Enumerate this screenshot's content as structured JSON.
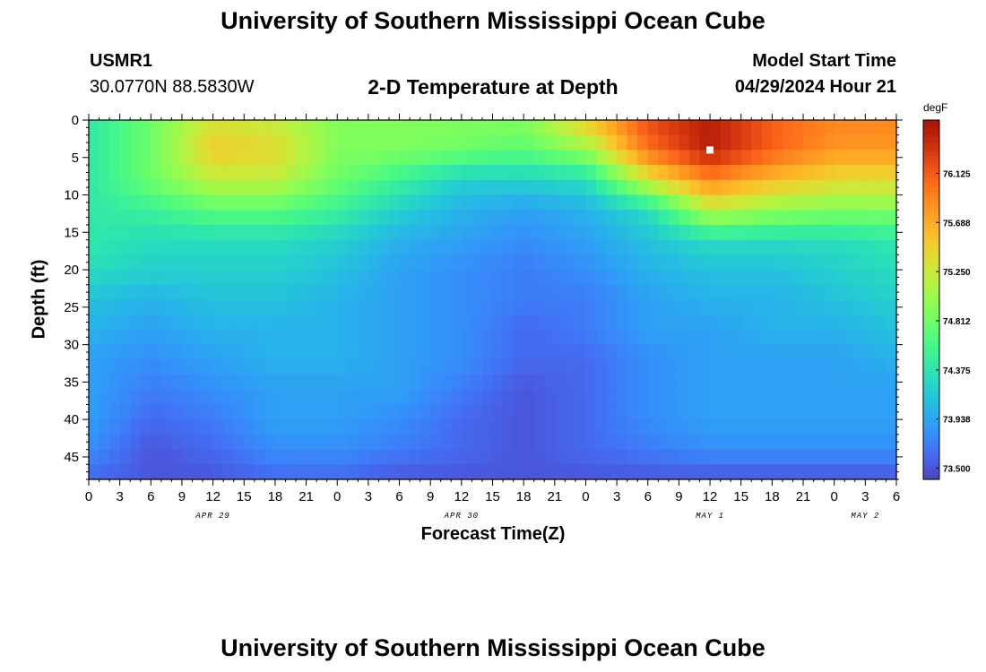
{
  "header": {
    "title": "University of Southern Mississippi Ocean Cube",
    "station_id": "USMR1",
    "station_coords": "30.0770N  88.5830W",
    "plot_title": "2-D Temperature at Depth",
    "model_start_label": "Model Start Time",
    "model_start_value": "04/29/2024 Hour 21"
  },
  "footer": {
    "title": "University of Southern Mississippi Ocean Cube"
  },
  "colors": {
    "colormap": "turbo",
    "marker": "#ffffff"
  },
  "chart_data": {
    "type": "heatmap",
    "title": "2-D Temperature at Depth",
    "xlabel": "Forecast Time(Z)",
    "ylabel": "Depth (ft)",
    "x_unit": "hours since 04/29/2024 00Z",
    "xlim": [
      0,
      78
    ],
    "x_ticks": [
      0,
      3,
      6,
      9,
      12,
      15,
      18,
      21,
      24,
      27,
      30,
      33,
      36,
      39,
      42,
      45,
      48,
      51,
      54,
      57,
      60,
      63,
      66,
      69,
      72,
      75,
      78
    ],
    "x_tick_labels": [
      "0",
      "3",
      "6",
      "9",
      "12",
      "15",
      "18",
      "21",
      "0",
      "3",
      "6",
      "9",
      "12",
      "15",
      "18",
      "21",
      "0",
      "3",
      "6",
      "9",
      "12",
      "15",
      "18",
      "21",
      "0",
      "3",
      "6"
    ],
    "date_labels": [
      {
        "text": "APR 29",
        "x": 12
      },
      {
        "text": "APR 30",
        "x": 36
      },
      {
        "text": "MAY 1",
        "x": 60
      },
      {
        "text": "MAY 2",
        "x": 75
      }
    ],
    "ylim": [
      0,
      48
    ],
    "y_inverted": true,
    "y_ticks": [
      0,
      5,
      10,
      15,
      20,
      25,
      30,
      35,
      40,
      45
    ],
    "colorbar": {
      "unit": "degF",
      "range": [
        73.4,
        76.6
      ],
      "tick_values": [
        73.5,
        73.938,
        74.375,
        74.812,
        75.25,
        75.688,
        76.125
      ],
      "tick_labels": [
        "73.500",
        "73.938",
        "74.375",
        "74.812",
        "75.250",
        "75.688",
        "76.125"
      ]
    },
    "grid": false,
    "marker": {
      "x": 60,
      "y": 4
    },
    "z_grid": {
      "x": [
        0,
        6,
        12,
        18,
        24,
        30,
        36,
        42,
        48,
        54,
        60,
        66,
        72,
        78
      ],
      "y": [
        0,
        4,
        8,
        12,
        16,
        20,
        24,
        28,
        32,
        36,
        40,
        44,
        48
      ],
      "z": [
        [
          74.4,
          74.8,
          75.3,
          75.2,
          74.9,
          74.9,
          74.9,
          74.9,
          75.5,
          76.2,
          76.5,
          76.1,
          75.9,
          75.9
        ],
        [
          74.4,
          74.8,
          75.5,
          75.4,
          74.9,
          74.9,
          74.8,
          74.7,
          75.0,
          76.0,
          76.5,
          76.1,
          75.8,
          75.8
        ],
        [
          74.4,
          74.8,
          75.2,
          75.2,
          74.8,
          74.5,
          74.2,
          74.2,
          74.3,
          75.3,
          75.9,
          75.6,
          75.4,
          75.4
        ],
        [
          74.4,
          74.5,
          74.7,
          74.7,
          74.5,
          74.2,
          74.0,
          73.9,
          74.0,
          74.3,
          75.2,
          75.0,
          74.9,
          74.9
        ],
        [
          74.4,
          74.3,
          74.3,
          74.3,
          74.2,
          74.0,
          73.9,
          73.8,
          73.9,
          74.1,
          74.3,
          74.3,
          74.3,
          74.4
        ],
        [
          74.3,
          74.2,
          74.2,
          74.2,
          74.1,
          73.9,
          73.8,
          73.7,
          73.8,
          74.0,
          74.1,
          74.1,
          74.2,
          74.3
        ],
        [
          74.1,
          74.0,
          74.1,
          74.1,
          74.0,
          73.9,
          73.8,
          73.7,
          73.7,
          73.9,
          74.0,
          74.0,
          74.1,
          74.2
        ],
        [
          74.0,
          73.9,
          74.0,
          74.0,
          74.0,
          73.9,
          73.8,
          73.6,
          73.7,
          73.9,
          73.9,
          74.0,
          74.0,
          74.1
        ],
        [
          73.9,
          73.8,
          73.9,
          74.0,
          74.0,
          73.9,
          73.8,
          73.6,
          73.6,
          73.8,
          73.9,
          73.9,
          73.9,
          74.0
        ],
        [
          73.9,
          73.7,
          73.8,
          73.9,
          73.9,
          73.9,
          73.7,
          73.5,
          73.6,
          73.8,
          73.9,
          73.9,
          73.9,
          73.9
        ],
        [
          73.9,
          73.6,
          73.7,
          73.9,
          73.9,
          73.8,
          73.6,
          73.5,
          73.6,
          73.8,
          73.9,
          73.9,
          73.9,
          73.9
        ],
        [
          73.8,
          73.5,
          73.6,
          73.8,
          73.8,
          73.7,
          73.6,
          73.5,
          73.6,
          73.7,
          73.8,
          73.8,
          73.8,
          73.8
        ],
        [
          73.6,
          73.5,
          73.5,
          73.6,
          73.6,
          73.5,
          73.5,
          73.5,
          73.5,
          73.5,
          73.5,
          73.5,
          73.5,
          73.5
        ]
      ]
    }
  }
}
